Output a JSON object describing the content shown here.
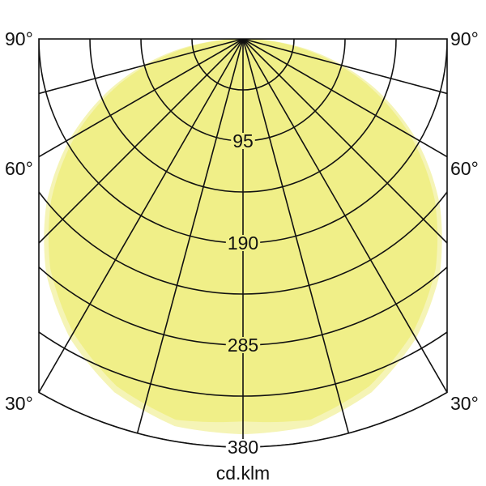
{
  "chart_data": {
    "type": "polar",
    "unit_label": "cd.klm",
    "radial_range": [
      0,
      380
    ],
    "radial_tick_labels": [
      "95",
      "190",
      "285",
      "380"
    ],
    "radial_gridlines": [
      47.5,
      95,
      142.5,
      190,
      237.5,
      285,
      332.5,
      380
    ],
    "angle_tick_labels": {
      "left": [
        "90°",
        "60°",
        "30°"
      ],
      "right": [
        "90°",
        "60°",
        "30°"
      ]
    },
    "angle_gridlines_deg": [
      0,
      15,
      30,
      45,
      60,
      75,
      90
    ],
    "angle_range_deg": [
      -90,
      90
    ],
    "grid": true,
    "series": [
      {
        "color": "#f5f4b6",
        "angles_deg": [
          0,
          10,
          20,
          30,
          40,
          50,
          60,
          70,
          80,
          90
        ],
        "values": [
          368,
          366,
          350,
          322,
          285,
          239,
          186,
          128,
          66,
          0
        ]
      },
      {
        "color": "#f0ef88",
        "angles_deg": [
          0,
          10,
          20,
          30,
          40,
          50,
          60,
          70,
          80,
          90
        ],
        "values": [
          356,
          360,
          344,
          316,
          279,
          233,
          180,
          122,
          60,
          0
        ]
      }
    ]
  }
}
